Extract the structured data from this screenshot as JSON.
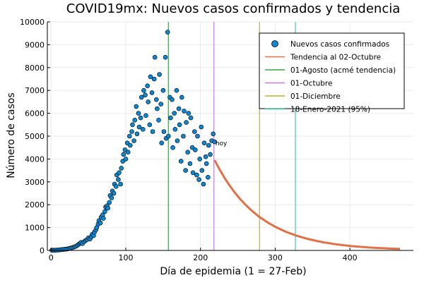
{
  "chart_data": {
    "type": "scatter",
    "title": "COVID19mx: Nuevos casos confirmados y tendencia",
    "xlabel": "Día de epidemia (1 = 27-Feb)",
    "ylabel": "Número de casos",
    "xlim": [
      -5,
      485
    ],
    "ylim": [
      0,
      10000
    ],
    "x_ticks": [
      0,
      100,
      200,
      300,
      400
    ],
    "y_ticks": [
      0,
      1000,
      2000,
      3000,
      4000,
      5000,
      6000,
      7000,
      8000,
      9000,
      10000
    ],
    "grid": true,
    "legend_position": "top-right",
    "annotation": {
      "text": "hoy",
      "x": 220,
      "y": 4600
    },
    "colors": {
      "scatter": "#0a88d4",
      "trend": "#e26f46",
      "agosto": "#3aa14a",
      "octubre": "#c27fe0",
      "diciembre": "#bfae2d",
      "enero": "#3fc9b8",
      "grid": "#e9e9e9"
    },
    "scatter_series": {
      "name": "Nuevos casos confirmados",
      "points": [
        [
          1,
          5
        ],
        [
          3,
          8
        ],
        [
          5,
          10
        ],
        [
          7,
          15
        ],
        [
          9,
          20
        ],
        [
          11,
          25
        ],
        [
          13,
          30
        ],
        [
          15,
          40
        ],
        [
          17,
          45
        ],
        [
          19,
          55
        ],
        [
          21,
          60
        ],
        [
          23,
          75
        ],
        [
          25,
          90
        ],
        [
          27,
          110
        ],
        [
          29,
          130
        ],
        [
          31,
          150
        ],
        [
          33,
          180
        ],
        [
          35,
          220
        ],
        [
          37,
          270
        ],
        [
          39,
          310
        ],
        [
          40,
          350
        ],
        [
          42,
          300
        ],
        [
          44,
          380
        ],
        [
          46,
          430
        ],
        [
          48,
          470
        ],
        [
          50,
          550
        ],
        [
          52,
          500
        ],
        [
          54,
          600
        ],
        [
          55,
          700
        ],
        [
          57,
          650
        ],
        [
          58,
          800
        ],
        [
          60,
          900
        ],
        [
          61,
          1000
        ],
        [
          63,
          1150
        ],
        [
          64,
          1300
        ],
        [
          66,
          1200
        ],
        [
          67,
          1450
        ],
        [
          69,
          1550
        ],
        [
          70,
          1400
        ],
        [
          72,
          1700
        ],
        [
          73,
          1900
        ],
        [
          75,
          1950
        ],
        [
          76,
          1850
        ],
        [
          78,
          2100
        ],
        [
          79,
          2400
        ],
        [
          81,
          2300
        ],
        [
          82,
          2600
        ],
        [
          84,
          2500
        ],
        [
          85,
          2900
        ],
        [
          87,
          2800
        ],
        [
          88,
          3300
        ],
        [
          90,
          3100
        ],
        [
          91,
          3400
        ],
        [
          93,
          2900
        ],
        [
          94,
          3600
        ],
        [
          96,
          3900
        ],
        [
          97,
          4200
        ],
        [
          99,
          4400
        ],
        [
          100,
          4000
        ],
        [
          102,
          4700
        ],
        [
          103,
          4300
        ],
        [
          105,
          5000
        ],
        [
          106,
          4600
        ],
        [
          108,
          5200
        ],
        [
          109,
          5500
        ],
        [
          111,
          4800
        ],
        [
          112,
          5700
        ],
        [
          114,
          6300
        ],
        [
          115,
          5100
        ],
        [
          117,
          6000
        ],
        [
          118,
          5400
        ],
        [
          120,
          5800
        ],
        [
          121,
          6700
        ],
        [
          123,
          5300
        ],
        [
          124,
          7000
        ],
        [
          126,
          6800
        ],
        [
          127,
          5900
        ],
        [
          129,
          7200
        ],
        [
          130,
          6500
        ],
        [
          132,
          5500
        ],
        [
          133,
          7600
        ],
        [
          135,
          6900
        ],
        [
          136,
          5200
        ],
        [
          138,
          7500
        ],
        [
          139,
          8450
        ],
        [
          141,
          6600
        ],
        [
          142,
          6200
        ],
        [
          144,
          5700
        ],
        [
          145,
          7700
        ],
        [
          147,
          6400
        ],
        [
          148,
          4700
        ],
        [
          150,
          7000
        ],
        [
          151,
          5200
        ],
        [
          153,
          8450
        ],
        [
          154,
          4900
        ],
        [
          156,
          9550
        ],
        [
          157,
          5000
        ],
        [
          159,
          6700
        ],
        [
          160,
          5800
        ],
        [
          162,
          6600
        ],
        [
          163,
          4500
        ],
        [
          165,
          6000
        ],
        [
          166,
          5300
        ],
        [
          168,
          7000
        ],
        [
          169,
          4800
        ],
        [
          171,
          6200
        ],
        [
          172,
          5500
        ],
        [
          174,
          3900
        ],
        [
          175,
          6700
        ],
        [
          177,
          5000
        ],
        [
          178,
          6100
        ],
        [
          180,
          3500
        ],
        [
          181,
          5600
        ],
        [
          183,
          4300
        ],
        [
          184,
          6000
        ],
        [
          186,
          3800
        ],
        [
          187,
          5800
        ],
        [
          189,
          4500
        ],
        [
          190,
          3400
        ],
        [
          192,
          5200
        ],
        [
          193,
          4400
        ],
        [
          195,
          3300
        ],
        [
          196,
          5000
        ],
        [
          198,
          3100
        ],
        [
          199,
          4000
        ],
        [
          201,
          5400
        ],
        [
          202,
          3500
        ],
        [
          204,
          2900
        ],
        [
          205,
          4700
        ],
        [
          207,
          4100
        ],
        [
          208,
          3800
        ],
        [
          210,
          3200
        ],
        [
          211,
          4600
        ],
        [
          213,
          4200
        ],
        [
          215,
          4800
        ],
        [
          217,
          5100
        ],
        [
          219,
          4750
        ]
      ]
    },
    "trend_series": {
      "name": "Tendencia al 02-Octubre",
      "x_start": 219,
      "x_end": 468,
      "y_start": 3950,
      "half_life_days": 42
    },
    "vlines": [
      {
        "name": "01-Agosto (acmé tendencia)",
        "x": 157,
        "color_key": "agosto"
      },
      {
        "name": "01-Octubre",
        "x": 218,
        "color_key": "octubre"
      },
      {
        "name": "01-Diciembre",
        "x": 279,
        "color_key": "diciembre"
      },
      {
        "name": "18-Enero-2021 (95%)",
        "x": 327,
        "color_key": "enero"
      }
    ]
  }
}
